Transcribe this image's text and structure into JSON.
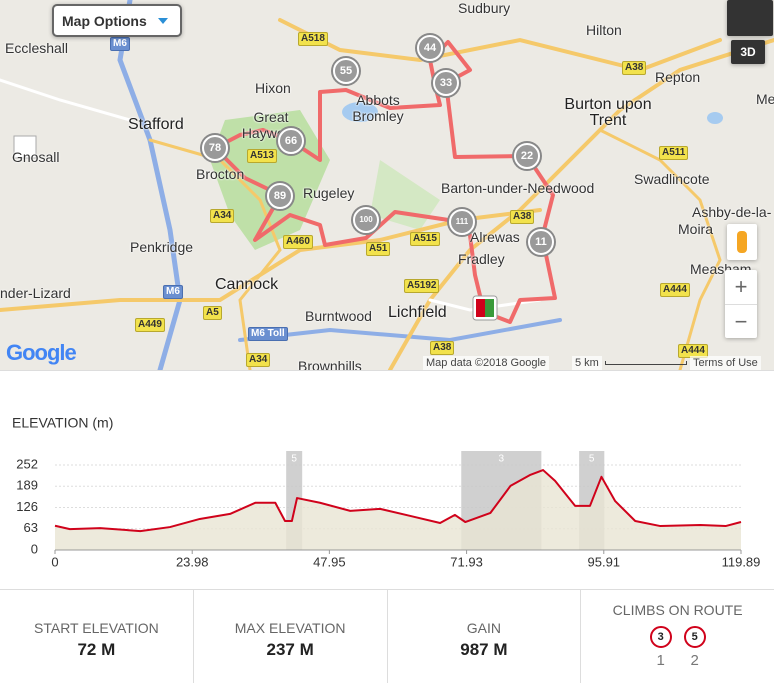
{
  "map": {
    "options_button": "Map Options",
    "view_3d": "3D",
    "towns": [
      "Eccleshall",
      "Sudbury",
      "Hilton",
      "Hixon",
      "Abbots Bromley",
      "Stafford",
      "Great Haywood",
      "Gnosall",
      "Brocton",
      "Rugeley",
      "Burton upon Trent",
      "Repton",
      "Swadlincote",
      "Barton-under-Needwood",
      "Ashby-de-la-",
      "Moira",
      "Alrewas",
      "Fradley",
      "Penkridge",
      "Cannock",
      "Measham",
      "Burntwood",
      "Lichfield",
      "nder-Lizard",
      "Brownhills",
      "Me"
    ],
    "roads": [
      "M6",
      "A518",
      "A38",
      "A513",
      "A511",
      "A34",
      "A460",
      "A51",
      "A515",
      "A38",
      "A5192",
      "M6",
      "A5",
      "A449",
      "M6 Toll",
      "A34",
      "A38",
      "A444",
      "A444"
    ],
    "clusters": [
      "44",
      "55",
      "33",
      "78",
      "66",
      "89",
      "22",
      "100",
      "111",
      "11"
    ],
    "logo": "Google",
    "attribution": "Map data ©2018 Google",
    "scale": "5 km",
    "terms": "Terms of Use"
  },
  "chart_data": {
    "type": "area",
    "title": "ELEVATION (m)",
    "color": "#d0021b",
    "fill": "#e8e5d3",
    "grid": true,
    "x": [
      0,
      2.6,
      7.9,
      14.9,
      20.1,
      25.3,
      30.6,
      35,
      38.5,
      40.2,
      41.4,
      42.3,
      46.3,
      51.6,
      56.8,
      62.1,
      67.3,
      69.9,
      71.7,
      76.1,
      79.6,
      83.1,
      85.3,
      87.4,
      90.9,
      93.5,
      95.5,
      97.9,
      101.4,
      105.8,
      112.8,
      117.2,
      119.89
    ],
    "values": [
      72,
      62,
      65,
      56,
      68,
      92,
      107,
      140,
      140,
      86,
      86,
      154,
      140,
      116,
      122,
      101,
      80,
      104,
      83,
      110,
      190,
      223,
      237,
      205,
      131,
      131,
      217,
      145,
      86,
      71,
      74,
      71,
      83
    ],
    "climbs": [
      {
        "start": 40.4,
        "end": 43.2,
        "category": 5
      },
      {
        "start": 71.0,
        "end": 85.0,
        "category": 3
      },
      {
        "start": 91.6,
        "end": 96.0,
        "category": 5
      }
    ],
    "xlim": [
      0,
      119.89
    ],
    "xticks": [
      0,
      23.98,
      47.95,
      71.93,
      95.91,
      119.89
    ],
    "ylim": [
      0,
      252
    ],
    "yticks": [
      0,
      63,
      126,
      189,
      252
    ]
  },
  "stats": [
    {
      "label": "START ELEVATION",
      "value": "72 M"
    },
    {
      "label": "MAX ELEVATION",
      "value": "237 M"
    },
    {
      "label": "GAIN",
      "value": "987 M"
    }
  ],
  "climbs_on_route": {
    "label": "CLIMBS ON ROUTE",
    "items": [
      {
        "category": "3",
        "number": "1"
      },
      {
        "category": "5",
        "number": "2"
      }
    ]
  }
}
